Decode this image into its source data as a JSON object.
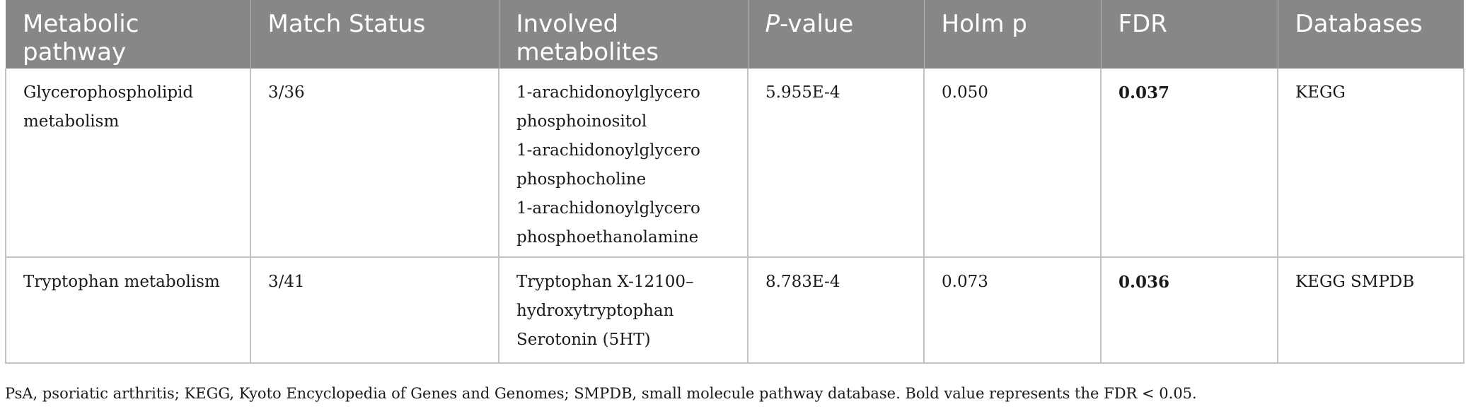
{
  "header": {
    "pathway": [
      "Metabolic",
      "pathway"
    ],
    "match": "Match Status",
    "metabolites": [
      "Involved",
      "metabolites"
    ],
    "pvalue_italic": "P",
    "pvalue_rest": "-value",
    "holm": "Holm p",
    "fdr": "FDR",
    "databases": "Databases"
  },
  "rows": [
    {
      "pathway": [
        "Glycerophospholipid",
        "metabolism"
      ],
      "match": "3/36",
      "metabolites": [
        "1-arachidonoylglycero",
        "phosphoinositol",
        "1-arachidonoylglycero",
        "phosphocholine",
        "1-arachidonoylglycero",
        "phosphoethanolamine"
      ],
      "pvalue": "5.955E-4",
      "holm": "0.050",
      "fdr": "0.037",
      "databases": "KEGG"
    },
    {
      "pathway": [
        "Tryptophan metabolism"
      ],
      "match": "3/41",
      "metabolites": [
        "Tryptophan X-12100–",
        "hydroxytryptophan",
        "Serotonin (5HT)"
      ],
      "pvalue": "8.783E-4",
      "holm": "0.073",
      "fdr": "0.036",
      "databases": "KEGG SMPDB"
    }
  ],
  "footnote": "PsA, psoriatic arthritis; KEGG, Kyoto Encyclopedia of Genes and Genomes; SMPDB, small molecule pathway database. Bold value represents the FDR < 0.05."
}
